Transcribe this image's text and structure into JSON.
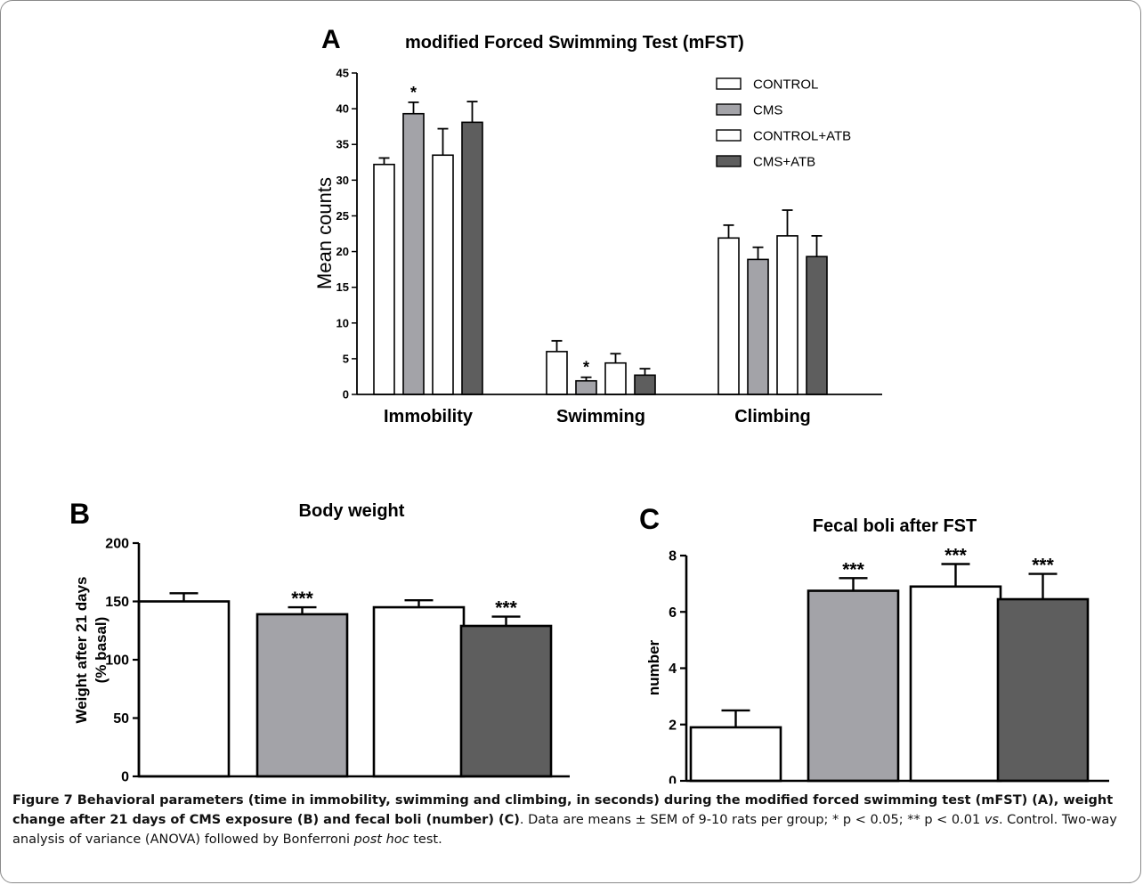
{
  "colors": {
    "control": "#ffffff",
    "cms": "#a3a3a8",
    "control_atb": "#ffffff",
    "cms_atb": "#5e5e5e",
    "axis": "#000000"
  },
  "chart_data": [
    {
      "panel": "A",
      "type": "bar",
      "title": "modified Forced Swimming Test (mFST)",
      "xlabel": "",
      "ylabel": "Mean counts",
      "ylim": [
        0,
        45
      ],
      "yticks": [
        "0",
        "5",
        "10",
        "15",
        "20",
        "25",
        "30",
        "35",
        "40",
        "45"
      ],
      "categories": [
        "Immobility",
        "Swimming",
        "Climbing"
      ],
      "legend_position": "top-right",
      "series": [
        {
          "name": "CONTROL",
          "color": "#ffffff",
          "values": [
            32.2,
            6.0,
            21.9
          ],
          "errors": [
            0.9,
            1.5,
            1.8
          ],
          "sig": [
            "",
            "",
            ""
          ]
        },
        {
          "name": "CMS",
          "color": "#a3a3a8",
          "values": [
            39.3,
            1.9,
            18.9
          ],
          "errors": [
            1.6,
            0.5,
            1.7
          ],
          "sig": [
            "*",
            "*",
            ""
          ]
        },
        {
          "name": "CONTROL+ATB",
          "color": "#ffffff",
          "values": [
            33.5,
            4.4,
            22.2
          ],
          "errors": [
            3.7,
            1.3,
            3.6
          ],
          "sig": [
            "",
            "",
            ""
          ]
        },
        {
          "name": "CMS+ATB",
          "color": "#5e5e5e",
          "values": [
            38.1,
            2.7,
            19.3
          ],
          "errors": [
            2.9,
            0.9,
            2.9
          ],
          "sig": [
            "",
            "",
            ""
          ]
        }
      ]
    },
    {
      "panel": "B",
      "type": "bar",
      "title": "Body weight",
      "xlabel": "",
      "ylabel": [
        "Weight after 21 days",
        "(% basal)"
      ],
      "ylim": [
        0,
        200
      ],
      "yticks": [
        "0",
        "50",
        "100",
        "150",
        "200"
      ],
      "categories": [
        "CONTROL",
        "CMS",
        "CONTROL+ATB",
        "CMS+ATB"
      ],
      "values": [
        150,
        139,
        145,
        129
      ],
      "errors": [
        7,
        6,
        6,
        8
      ],
      "sig": [
        "",
        "***",
        "",
        "***"
      ],
      "colors": [
        "#ffffff",
        "#a3a3a8",
        "#ffffff",
        "#5e5e5e"
      ]
    },
    {
      "panel": "C",
      "type": "bar",
      "title": "Fecal boli after FST",
      "xlabel": "",
      "ylabel": "number",
      "ylim": [
        0,
        8
      ],
      "yticks": [
        "0",
        "2",
        "4",
        "6",
        "8"
      ],
      "categories": [
        "CONTROL",
        "CMS",
        "CONTROL+ATB",
        "CMS+ATB"
      ],
      "values": [
        1.9,
        6.75,
        6.9,
        6.45
      ],
      "errors": [
        0.6,
        0.45,
        0.8,
        0.9
      ],
      "sig": [
        "",
        "***",
        "***",
        "***"
      ],
      "colors": [
        "#ffffff",
        "#a3a3a8",
        "#ffffff",
        "#5e5e5e"
      ]
    }
  ],
  "caption": {
    "label": "Figure 7",
    "bold_text": " Behavioral parameters (time in immobility, swimming and climbing, in seconds) during the modified forced swimming test (mFST) (A), weight change after 21 days of CMS exposure (B) and fecal boli (number) (C)",
    "text_1": ". Data are means ± SEM of 9-10 rats per group; * p < 0.05; ** p < 0.01 ",
    "vs": "vs",
    "text_2": ". Control. Two-way analysis of variance (ANOVA) followed by Bonferroni ",
    "post_hoc": "post hoc",
    "text_3": " test."
  }
}
